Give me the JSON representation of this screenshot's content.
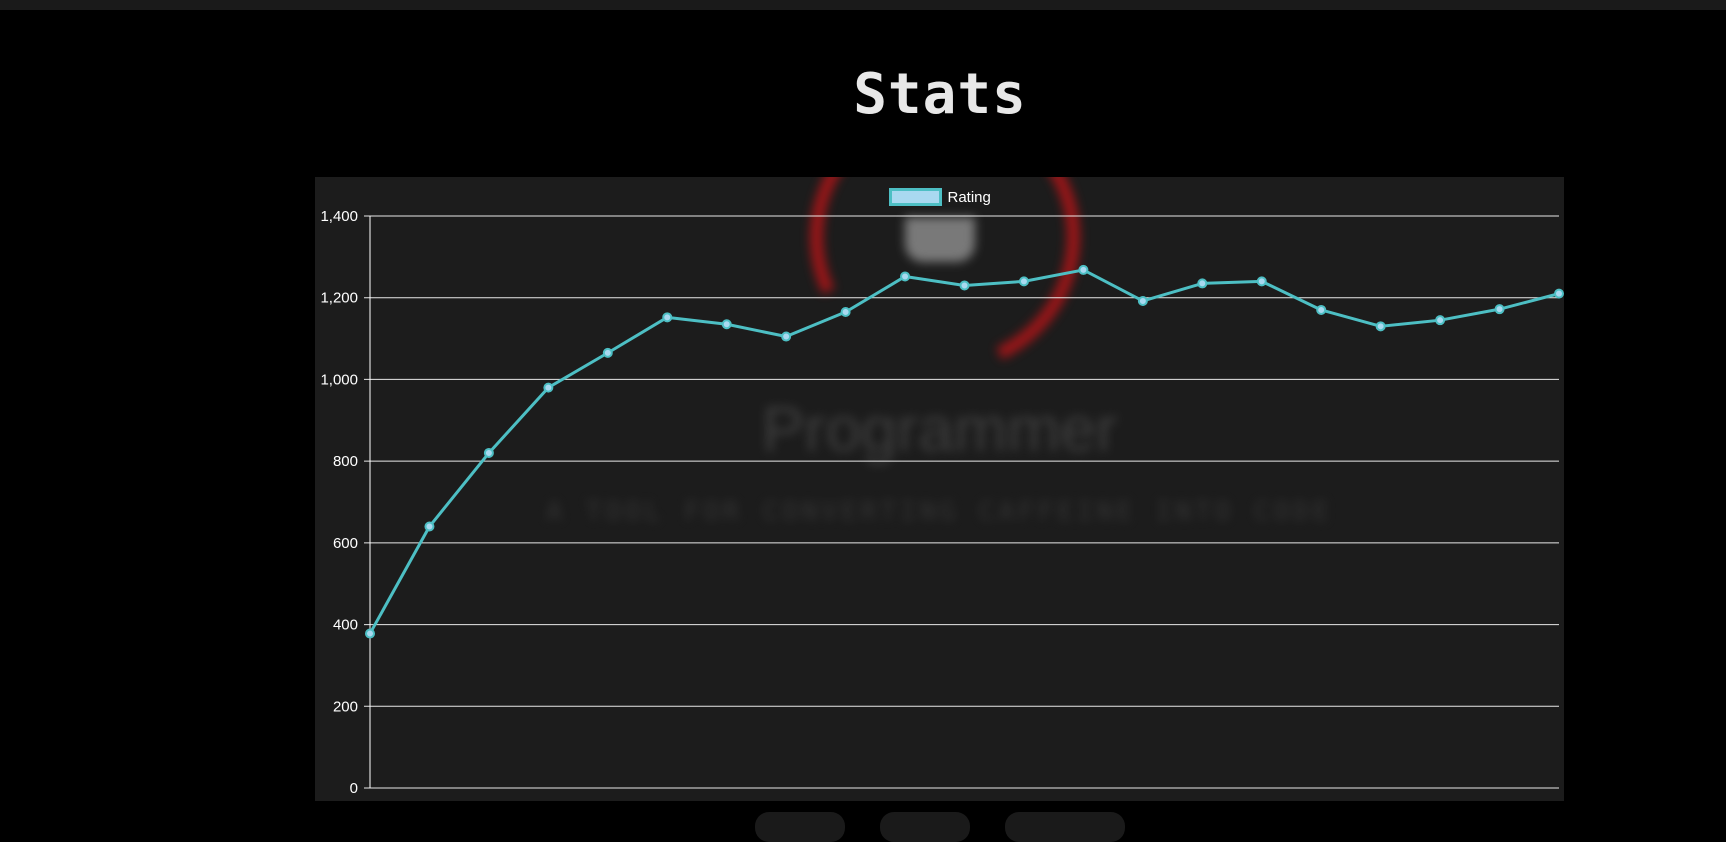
{
  "page": {
    "title": "Stats"
  },
  "background_art": {
    "word": "Programmer",
    "tagline": "A TOOL FOR CONVERTING CAFFEINE INTO CODE"
  },
  "colors": {
    "line": "#4dbfc4",
    "legend_fill": "#a9d9f0",
    "grid": "#ffffff",
    "panel": "#1c1c1c",
    "ring": "#b01518"
  },
  "chart_data": {
    "type": "line",
    "legend": [
      "Rating"
    ],
    "legend_position": "top-center",
    "series": [
      {
        "name": "Rating",
        "values": [
          378,
          640,
          820,
          980,
          1065,
          1152,
          1135,
          1105,
          1165,
          1252,
          1230,
          1240,
          1268,
          1192,
          1235,
          1240,
          1170,
          1130,
          1145,
          1172,
          1210
        ]
      }
    ],
    "x_labels_shown": false,
    "ylim": [
      0,
      1400
    ],
    "yticks": [
      "0",
      "200",
      "400",
      "600",
      "800",
      "1,000",
      "1,200",
      "1,400"
    ],
    "ytick_values": [
      0,
      200,
      400,
      600,
      800,
      1000,
      1200,
      1400
    ],
    "grid": true
  }
}
